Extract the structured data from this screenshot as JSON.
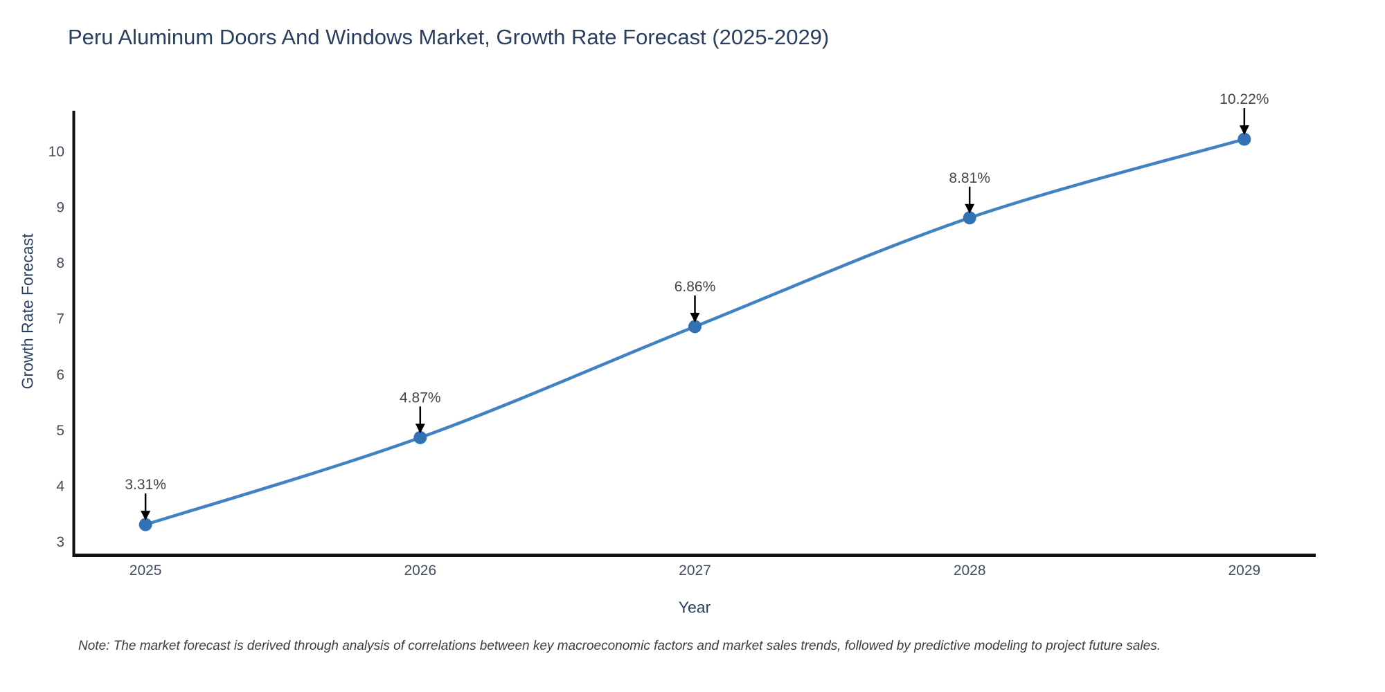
{
  "title": "Peru Aluminum Doors And Windows Market, Growth Rate Forecast (2025-2029)",
  "note": "Note: The market forecast is derived through analysis of correlations between key macroeconomic factors and market sales trends, followed by predictive modeling to project future sales.",
  "chart_data": {
    "type": "line",
    "title": "Peru Aluminum Doors And Windows Market, Growth Rate Forecast (2025-2029)",
    "xlabel": "Year",
    "ylabel": "Growth Rate Forecast",
    "x": [
      2025,
      2026,
      2027,
      2028,
      2029
    ],
    "values": [
      3.31,
      4.87,
      6.86,
      8.81,
      10.22
    ],
    "point_labels": [
      "3.31%",
      "4.87%",
      "6.86%",
      "8.81%",
      "10.22%"
    ],
    "x_tick_labels": [
      "2025",
      "2026",
      "2027",
      "2028",
      "2029"
    ],
    "y_ticks": [
      3,
      4,
      5,
      6,
      7,
      8,
      9,
      10
    ],
    "xlim": [
      2024.74,
      2029.26
    ],
    "ylim": [
      2.79,
      10.73
    ],
    "grid": false,
    "legend": "none",
    "line_shape": "spline",
    "annotation_arrows": true,
    "colors": {
      "line": "#4182c3",
      "marker": "#3371b5",
      "axis": "#111111",
      "tick_label": "#444b5a",
      "annotation": "#444444",
      "arrow": "#000000",
      "title": "#2a3f5f",
      "axis_title": "#2a3f5f",
      "note": "#3c3c3c",
      "background": "#ffffff"
    }
  }
}
